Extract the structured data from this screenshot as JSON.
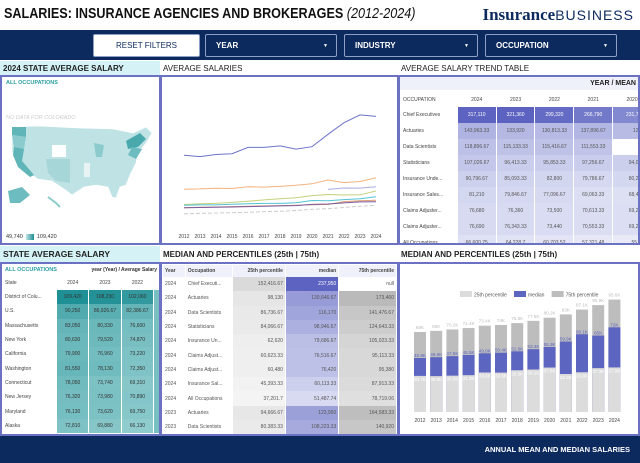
{
  "header": {
    "title": "SALARIES: INSURANCE AGENCIES AND BROKERAGES",
    "title_years": "(2012-2024)",
    "logo_bold": "Insurance",
    "logo_light": "BUSINESS"
  },
  "filters": {
    "reset": "RESET FILTERS",
    "year": "YEAR",
    "industry": "INDUSTRY",
    "occupation": "OCCUPATION"
  },
  "colors": {
    "navy": "#0d2a5e",
    "panel_border": "#6b72c4",
    "mean_blue": "#5b62c0",
    "teal": "#1e8f94"
  },
  "map_panel": {
    "title": "2024 STATE AVERAGE SALARY",
    "filter_label": "ALL OCCUPATIONS",
    "no_data_note": "NO DATA FOR COLORADO",
    "legend_min": "49,740",
    "legend_max": "109,420"
  },
  "line_panel": {
    "title": "AVERAGE SALARIES",
    "chart_data": {
      "type": "line",
      "x": [
        2012,
        2013,
        2014,
        2015,
        2016,
        2017,
        2018,
        2019,
        2020,
        2021,
        2022,
        2023,
        2024
      ],
      "series": [
        {
          "color": "#6d74c8",
          "values": [
            208000,
            204000,
            210000,
            212000,
            230000,
            230000,
            234000,
            225000,
            231793,
            266790,
            299320,
            321360,
            317110
          ]
        },
        {
          "color": "#f4b27e",
          "values": [
            112000,
            113000,
            115000,
            114000,
            119000,
            118000,
            120000,
            123000,
            127370,
            137897,
            130813,
            133920,
            143963
          ]
        },
        {
          "color": "#a9addf",
          "values": [
            null,
            null,
            null,
            null,
            null,
            null,
            null,
            null,
            null,
            111553,
            115417,
            115133,
            118897
          ]
        },
        {
          "color": "#c5d17a",
          "values": [
            69000,
            71000,
            72000,
            75000,
            78000,
            82000,
            85000,
            88000,
            94067,
            97257,
            95853,
            96413,
            107027
          ]
        },
        {
          "color": "#52c4d6",
          "values": [
            67000,
            68000,
            68000,
            70000,
            71000,
            72000,
            72000,
            74000,
            80233,
            79787,
            82800,
            85093,
            90797
          ]
        },
        {
          "color": "#e0a070",
          "values": [
            60000,
            61000,
            62000,
            63000,
            64000,
            65000,
            66000,
            67000,
            68443,
            69063,
            77097,
            79847,
            81210
          ]
        },
        {
          "color": "#7a5aa0",
          "values": [
            60000,
            60500,
            61000,
            62000,
            63000,
            64000,
            65000,
            66000,
            69203,
            70553,
            73440,
            76343,
            76690
          ]
        },
        {
          "color": "#cccccc",
          "dashed": true,
          "values": [
            43000,
            44000,
            45000,
            46000,
            47000,
            49000,
            50000,
            52000,
            55409,
            57321,
            60704,
            64229,
            66601
          ]
        }
      ]
    }
  },
  "trend_table": {
    "title": "AVERAGE SALARY TREND TABLE",
    "corner_label": "YEAR / MEAN",
    "col_header": "OCCUPATION",
    "years": [
      "2024",
      "2023",
      "2022",
      "2021",
      "2020"
    ],
    "rows": [
      {
        "occupation": "Chief Executives",
        "values": [
          "317,110",
          "321,360",
          "299,320",
          "266,790",
          "231,793.33"
        ]
      },
      {
        "occupation": "Actuaries",
        "values": [
          "143,963.33",
          "133,920",
          "130,813.33",
          "137,896.67",
          "127,370"
        ]
      },
      {
        "occupation": "Data Scientists",
        "values": [
          "118,896.67",
          "115,133.33",
          "115,416.67",
          "111,553.33",
          "-"
        ]
      },
      {
        "occupation": "Statisticians",
        "values": [
          "107,026.67",
          "96,413.33",
          "95,853.33",
          "97,256.67",
          "94,066.67"
        ]
      },
      {
        "occupation": "Insurance Unde...",
        "values": [
          "90,796.67",
          "85,093.33",
          "82,800",
          "79,786.67",
          "80,233.33"
        ]
      },
      {
        "occupation": "Insurance Sales...",
        "values": [
          "81,210",
          "79,846.67",
          "77,096.67",
          "69,063.33",
          "68,443.33"
        ]
      },
      {
        "occupation": "Claims Adjuster...",
        "values": [
          "76,680",
          "76,360",
          "73,500",
          "70,613.33",
          "69,283.33"
        ]
      },
      {
        "occupation": "Claims Adjuster...",
        "values": [
          "76,690",
          "76,343.33",
          "73,440",
          "70,553.33",
          "69,203.33"
        ]
      },
      {
        "occupation": "All Occupations",
        "values": [
          "66,600.75",
          "64,228.7",
          "60,703.52",
          "57,321.48",
          "55,408.7"
        ]
      }
    ]
  },
  "state_table": {
    "title": "STATE AVERAGE SALARY",
    "filter_label": "ALL OCCUPATIONS",
    "corner_label": "year (Year) / Average Salary",
    "col_header": "State",
    "years": [
      "2024",
      "2023",
      "2022"
    ],
    "rows": [
      {
        "state": "District of Colu...",
        "values": [
          "109,420",
          "108,230",
          "102,060"
        ]
      },
      {
        "state": "U.S.",
        "values": [
          "90,250",
          "86,926.67",
          "82,386.67"
        ]
      },
      {
        "state": "Massachusetts",
        "values": [
          "83,050",
          "80,330",
          "76,600"
        ]
      },
      {
        "state": "New York",
        "values": [
          "80,630",
          "79,520",
          "74,870"
        ]
      },
      {
        "state": "California",
        "values": [
          "79,900",
          "76,960",
          "73,220"
        ]
      },
      {
        "state": "Washington",
        "values": [
          "81,550",
          "78,130",
          "72,350"
        ]
      },
      {
        "state": "Connecticut",
        "values": [
          "78,050",
          "73,740",
          "69,310"
        ]
      },
      {
        "state": "New Jersey",
        "values": [
          "76,320",
          "73,980",
          "70,890"
        ]
      },
      {
        "state": "Maryland",
        "values": [
          "76,130",
          "73,620",
          "69,750"
        ]
      },
      {
        "state": "Alaska",
        "values": [
          "72,810",
          "69,880",
          "66,130"
        ]
      }
    ]
  },
  "median_table": {
    "title": "MEDIAN AND PERCENTILES (25th | 75th)",
    "columns": [
      "Year",
      "Occupation",
      "25th percentile",
      "median",
      "75th percentile"
    ],
    "rows": [
      [
        "2024",
        "Chief Executi...",
        "152,416.67",
        "237,950",
        "null"
      ],
      [
        "2024",
        "Actuaries",
        "98,130",
        "130,646.67",
        "173,460"
      ],
      [
        "2024",
        "Data Scientists",
        "86,736.67",
        "116,170",
        "141,476.67"
      ],
      [
        "2024",
        "Statisticians",
        "84,066.67",
        "98,946.67",
        "124,643.33"
      ],
      [
        "2024",
        "Insurance Un...",
        "62,620",
        "79,686.67",
        "105,023.33"
      ],
      [
        "2024",
        "Claims Adjust...",
        "60,623.33",
        "76,516.67",
        "95,113.33"
      ],
      [
        "2024",
        "Claims Adjust...",
        "60,480",
        "76,420",
        "95,380"
      ],
      [
        "2024",
        "Insurance Sal...",
        "45,393.33",
        "60,113.33",
        "87,913.33"
      ],
      [
        "2024",
        "All Occupations",
        "37,201.7",
        "51,487.74",
        "78,719.06"
      ],
      [
        "2023",
        "Actuaries",
        "94,666.67",
        "123,950",
        "164,583.33"
      ],
      [
        "2023",
        "Data Scientists",
        "80,383.33",
        "108,223.33",
        "140,920"
      ]
    ]
  },
  "bar_panel": {
    "title": "MEDIAN AND PERCENTILES (25th | 75th)",
    "chart_data": {
      "type": "bar",
      "stacked": "overlay",
      "categories": [
        "2012",
        "2013",
        "2014",
        "2015",
        "2016",
        "2017",
        "2018",
        "2019",
        "2020",
        "2021",
        "2022",
        "2023",
        "2024"
      ],
      "legend_position": "top-right",
      "series": [
        {
          "name": "25th percentile",
          "color": "#dcdcdc",
          "values": [
            30.7,
            30.5,
            30.9,
            31.3,
            33.6,
            33.5,
            35.5,
            36.1,
            37.8,
            32.3,
            33.8,
            37.3,
            37.9
          ],
          "labels": [
            "30.7K",
            "30.5K",
            "30.9K",
            "31.3K",
            "33.6K",
            "33.5K",
            "35.5K",
            "36.1K",
            "37.8K",
            "32.3K",
            "33.8K",
            "37.3K",
            "37.9K"
          ]
        },
        {
          "name": "median",
          "color": "#5c65c0",
          "values": [
            45.9,
            46.6,
            47.5,
            48.5,
            49.9,
            50.4,
            51.6,
            53.4,
            55.3,
            59.9,
            66.1,
            65,
            72
          ],
          "labels": [
            "45.9K",
            "46.6K",
            "47.5K",
            "48.5K",
            "49.9K",
            "50.4K",
            "51.6K",
            "53.4K",
            "55.3K",
            "59.9K",
            "66.1K",
            "65K",
            "72K"
          ]
        },
        {
          "name": "75th percentile",
          "color": "#bdbdbd",
          "values": [
            68,
            69,
            70.2,
            71.4,
            73.4,
            74,
            75.6,
            77.5,
            80.2,
            83,
            87.1,
            90.9,
            95.6
          ],
          "labels": [
            "68K",
            "69K",
            "70.2K",
            "71.4K",
            "73.4K",
            "74K",
            "75.6K",
            "77.5K",
            "80.2K",
            "83K",
            "87.1K",
            "90.9K",
            "95.6K"
          ]
        }
      ]
    }
  },
  "footer": {
    "label": "ANNUAL MEAN AND MEDIAN SALARIES"
  }
}
